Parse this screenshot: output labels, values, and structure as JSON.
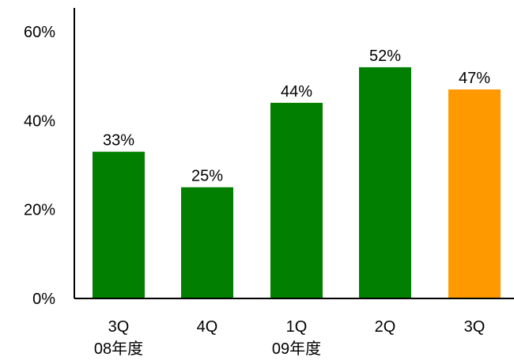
{
  "chart_data": {
    "type": "bar",
    "categories": [
      {
        "label": "3Q",
        "sublabel": "08年度"
      },
      {
        "label": "4Q",
        "sublabel": ""
      },
      {
        "label": "1Q",
        "sublabel": "09年度"
      },
      {
        "label": "2Q",
        "sublabel": ""
      },
      {
        "label": "3Q",
        "sublabel": ""
      }
    ],
    "values": [
      33,
      25,
      44,
      52,
      47
    ],
    "data_labels": [
      "33%",
      "25%",
      "44%",
      "52%",
      "47%"
    ],
    "highlight_index": 4,
    "yticks": [
      {
        "value": 0,
        "label": "0%"
      },
      {
        "value": 20,
        "label": "20%"
      },
      {
        "value": 40,
        "label": "40%"
      },
      {
        "value": 60,
        "label": "60%"
      }
    ],
    "ylim": [
      0,
      60
    ],
    "grid": false,
    "legend": "none",
    "title": "",
    "xlabel": "",
    "ylabel": "",
    "colors": {
      "bar": "#007f00",
      "highlight": "#ff9900",
      "axis": "#000000"
    }
  }
}
